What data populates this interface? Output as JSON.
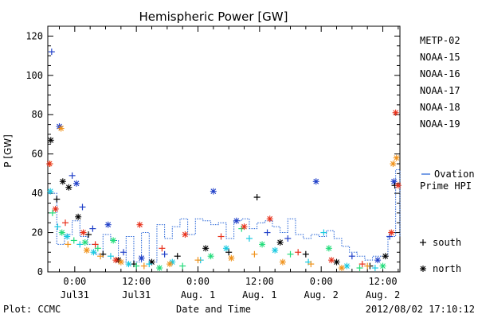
{
  "chart_data": {
    "type": "scatter",
    "title": "Hemispheric Power [GW]",
    "ylabel": "P [GW]",
    "xlabel": "Date and Time",
    "ylim": [
      0,
      125
    ],
    "yticks": [
      0,
      20,
      40,
      60,
      80,
      100,
      120
    ],
    "xlim": [
      "2012-07-30T18:45",
      "2012-08-02T15:20"
    ],
    "xticks": [
      {
        "t": "2012-07-31T00:00",
        "line1": "0:00",
        "line2": "Jul31"
      },
      {
        "t": "2012-07-31T12:00",
        "line1": "12:00",
        "line2": "Jul31"
      },
      {
        "t": "2012-08-01T00:00",
        "line1": "0:00",
        "line2": "Aug. 1"
      },
      {
        "t": "2012-08-01T12:00",
        "line1": "12:00",
        "line2": "Aug. 1"
      },
      {
        "t": "2012-08-02T00:00",
        "line1": "0:00",
        "line2": "Aug. 2"
      },
      {
        "t": "2012-08-02T12:00",
        "line1": "12:00",
        "line2": "Aug. 2"
      }
    ],
    "marker_legend": {
      "south": "south",
      "north": "north",
      "south_symbol": "+",
      "north_symbol": "*"
    },
    "ovation": {
      "name": "Ovation Prime HPI",
      "color": "#1f5fd6",
      "x": [
        "2012-07-30T19:00",
        "2012-07-30T20:30",
        "2012-07-30T22:00",
        "2012-07-30T23:30",
        "2012-07-31T01:00",
        "2012-07-31T02:30",
        "2012-07-31T04:00",
        "2012-07-31T05:30",
        "2012-07-31T07:00",
        "2012-07-31T08:30",
        "2012-07-31T10:00",
        "2012-07-31T11:30",
        "2012-07-31T13:00",
        "2012-07-31T14:30",
        "2012-07-31T16:00",
        "2012-07-31T17:30",
        "2012-07-31T19:00",
        "2012-07-31T20:30",
        "2012-07-31T22:00",
        "2012-07-31T23:30",
        "2012-08-01T01:00",
        "2012-08-01T02:30",
        "2012-08-01T04:00",
        "2012-08-01T05:30",
        "2012-08-01T07:00",
        "2012-08-01T08:30",
        "2012-08-01T10:00",
        "2012-08-01T11:30",
        "2012-08-01T13:00",
        "2012-08-01T14:30",
        "2012-08-01T16:00",
        "2012-08-01T17:30",
        "2012-08-01T19:00",
        "2012-08-01T20:30",
        "2012-08-01T22:00",
        "2012-08-01T23:30",
        "2012-08-02T01:00",
        "2012-08-02T02:30",
        "2012-08-02T04:00",
        "2012-08-02T05:30",
        "2012-08-02T07:00",
        "2012-08-02T08:30",
        "2012-08-02T10:00",
        "2012-08-02T11:30",
        "2012-08-02T13:00",
        "2012-08-02T14:30",
        "2012-08-02T15:20"
      ],
      "y": [
        40,
        14,
        19,
        26,
        18,
        14,
        9,
        19,
        16,
        5,
        18,
        5,
        20,
        5,
        24,
        17,
        23,
        27,
        19,
        27,
        26,
        24,
        25,
        17,
        26,
        27,
        22,
        25,
        26,
        23,
        20,
        27,
        19,
        17,
        19,
        18,
        21,
        17,
        13,
        10,
        8,
        6,
        8,
        8,
        18,
        52,
        18
      ]
    },
    "series": [
      {
        "name": "METP-02",
        "color": "#000000",
        "points": [
          {
            "x": "2012-07-30T19:20",
            "y": 67,
            "m": "*"
          },
          {
            "x": "2012-07-30T20:30",
            "y": 37,
            "m": "+"
          },
          {
            "x": "2012-07-30T21:40",
            "y": 46,
            "m": "*"
          },
          {
            "x": "2012-07-30T22:50",
            "y": 43,
            "m": "*"
          },
          {
            "x": "2012-07-31T00:40",
            "y": 28,
            "m": "*"
          },
          {
            "x": "2012-07-31T02:40",
            "y": 19,
            "m": "+"
          },
          {
            "x": "2012-07-31T05:30",
            "y": 9,
            "m": "+"
          },
          {
            "x": "2012-07-31T08:30",
            "y": 6,
            "m": "*"
          },
          {
            "x": "2012-07-31T11:30",
            "y": 4,
            "m": "+"
          },
          {
            "x": "2012-07-31T15:00",
            "y": 5,
            "m": "*"
          },
          {
            "x": "2012-07-31T20:00",
            "y": 8,
            "m": "+"
          },
          {
            "x": "2012-08-01T01:30",
            "y": 12,
            "m": "*"
          },
          {
            "x": "2012-08-01T06:00",
            "y": 10,
            "m": "+"
          },
          {
            "x": "2012-08-01T11:30",
            "y": 38,
            "m": "+"
          },
          {
            "x": "2012-08-01T16:00",
            "y": 15,
            "m": "*"
          },
          {
            "x": "2012-08-01T21:00",
            "y": 9,
            "m": "+"
          },
          {
            "x": "2012-08-02T03:00",
            "y": 5,
            "m": "*"
          },
          {
            "x": "2012-08-02T09:30",
            "y": 3,
            "m": "+"
          },
          {
            "x": "2012-08-02T12:30",
            "y": 8,
            "m": "*"
          },
          {
            "x": "2012-08-02T14:20",
            "y": 44,
            "m": "+"
          }
        ]
      },
      {
        "name": "NOAA-15",
        "color": "#1f3fc8",
        "points": [
          {
            "x": "2012-07-30T19:30",
            "y": 112,
            "m": "+"
          },
          {
            "x": "2012-07-30T21:00",
            "y": 74,
            "m": "*"
          },
          {
            "x": "2012-07-30T23:30",
            "y": 49,
            "m": "+"
          },
          {
            "x": "2012-07-31T00:20",
            "y": 45,
            "m": "*"
          },
          {
            "x": "2012-07-31T01:30",
            "y": 33,
            "m": "+"
          },
          {
            "x": "2012-07-31T03:30",
            "y": 22,
            "m": "+"
          },
          {
            "x": "2012-07-31T06:30",
            "y": 24,
            "m": "*"
          },
          {
            "x": "2012-07-31T09:30",
            "y": 10,
            "m": "+"
          },
          {
            "x": "2012-07-31T13:00",
            "y": 7,
            "m": "*"
          },
          {
            "x": "2012-07-31T17:30",
            "y": 9,
            "m": "+"
          },
          {
            "x": "2012-08-01T03:00",
            "y": 41,
            "m": "*"
          },
          {
            "x": "2012-08-01T07:30",
            "y": 26,
            "m": "*"
          },
          {
            "x": "2012-08-01T13:30",
            "y": 20,
            "m": "+"
          },
          {
            "x": "2012-08-01T17:30",
            "y": 17,
            "m": "+"
          },
          {
            "x": "2012-08-01T23:00",
            "y": 46,
            "m": "*"
          },
          {
            "x": "2012-08-02T06:00",
            "y": 8,
            "m": "+"
          },
          {
            "x": "2012-08-02T11:00",
            "y": 6,
            "m": "*"
          },
          {
            "x": "2012-08-02T13:20",
            "y": 18,
            "m": "+"
          },
          {
            "x": "2012-08-02T14:10",
            "y": 46,
            "m": "*"
          }
        ]
      },
      {
        "name": "NOAA-16",
        "color": "#18c8e0",
        "points": [
          {
            "x": "2012-07-30T19:15",
            "y": 41,
            "m": "*"
          },
          {
            "x": "2012-07-30T20:40",
            "y": 23,
            "m": "+"
          },
          {
            "x": "2012-07-30T22:30",
            "y": 18,
            "m": "*"
          },
          {
            "x": "2012-07-31T01:00",
            "y": 14,
            "m": "+"
          },
          {
            "x": "2012-07-31T03:40",
            "y": 10,
            "m": "*"
          },
          {
            "x": "2012-07-31T07:00",
            "y": 8,
            "m": "+"
          },
          {
            "x": "2012-07-31T10:30",
            "y": 4,
            "m": "*"
          },
          {
            "x": "2012-07-31T14:30",
            "y": 4,
            "m": "+"
          },
          {
            "x": "2012-07-31T19:00",
            "y": 5,
            "m": "*"
          },
          {
            "x": "2012-08-01T00:30",
            "y": 6,
            "m": "+"
          },
          {
            "x": "2012-08-01T05:30",
            "y": 12,
            "m": "*"
          },
          {
            "x": "2012-08-01T10:00",
            "y": 17,
            "m": "+"
          },
          {
            "x": "2012-08-01T15:00",
            "y": 11,
            "m": "*"
          },
          {
            "x": "2012-08-01T21:30",
            "y": 5,
            "m": "+"
          },
          {
            "x": "2012-08-02T00:30",
            "y": 20,
            "m": "+"
          },
          {
            "x": "2012-08-02T05:00",
            "y": 3,
            "m": "*"
          },
          {
            "x": "2012-08-02T10:30",
            "y": 2,
            "m": "+"
          }
        ]
      },
      {
        "name": "NOAA-17",
        "color": "#22dc7a",
        "points": [
          {
            "x": "2012-07-30T19:40",
            "y": 30,
            "m": "+"
          },
          {
            "x": "2012-07-30T21:30",
            "y": 20,
            "m": "*"
          },
          {
            "x": "2012-07-30T23:50",
            "y": 16,
            "m": "+"
          },
          {
            "x": "2012-07-31T02:00",
            "y": 15,
            "m": "*"
          },
          {
            "x": "2012-07-31T04:30",
            "y": 12,
            "m": "+"
          },
          {
            "x": "2012-07-31T07:30",
            "y": 16,
            "m": "*"
          },
          {
            "x": "2012-07-31T12:00",
            "y": 3,
            "m": "+"
          },
          {
            "x": "2012-07-31T16:30",
            "y": 2,
            "m": "*"
          },
          {
            "x": "2012-07-31T21:00",
            "y": 3,
            "m": "+"
          },
          {
            "x": "2012-08-01T02:30",
            "y": 8,
            "m": "*"
          },
          {
            "x": "2012-08-01T08:30",
            "y": 22,
            "m": "+"
          },
          {
            "x": "2012-08-01T12:30",
            "y": 14,
            "m": "*"
          },
          {
            "x": "2012-08-01T18:00",
            "y": 9,
            "m": "+"
          },
          {
            "x": "2012-08-02T01:30",
            "y": 12,
            "m": "*"
          },
          {
            "x": "2012-08-02T07:30",
            "y": 2,
            "m": "+"
          },
          {
            "x": "2012-08-02T12:00",
            "y": 3,
            "m": "*"
          }
        ]
      },
      {
        "name": "NOAA-18",
        "color": "#f0921a",
        "points": [
          {
            "x": "2012-07-30T19:10",
            "y": 55,
            "m": "+"
          },
          {
            "x": "2012-07-30T21:20",
            "y": 73,
            "m": "*"
          },
          {
            "x": "2012-07-30T22:40",
            "y": 14,
            "m": "+"
          },
          {
            "x": "2012-07-31T02:20",
            "y": 11,
            "m": "*"
          },
          {
            "x": "2012-07-31T05:00",
            "y": 8,
            "m": "+"
          },
          {
            "x": "2012-07-31T09:00",
            "y": 5,
            "m": "*"
          },
          {
            "x": "2012-07-31T13:30",
            "y": 3,
            "m": "+"
          },
          {
            "x": "2012-07-31T18:30",
            "y": 4,
            "m": "*"
          },
          {
            "x": "2012-08-01T00:00",
            "y": 6,
            "m": "+"
          },
          {
            "x": "2012-08-01T06:30",
            "y": 7,
            "m": "*"
          },
          {
            "x": "2012-08-01T11:00",
            "y": 9,
            "m": "+"
          },
          {
            "x": "2012-08-01T16:30",
            "y": 5,
            "m": "*"
          },
          {
            "x": "2012-08-01T22:00",
            "y": 4,
            "m": "+"
          },
          {
            "x": "2012-08-02T04:00",
            "y": 2,
            "m": "*"
          },
          {
            "x": "2012-08-02T09:00",
            "y": 3,
            "m": "+"
          },
          {
            "x": "2012-08-02T14:00",
            "y": 55,
            "m": "*"
          },
          {
            "x": "2012-08-02T14:40",
            "y": 58,
            "m": "*"
          }
        ]
      },
      {
        "name": "NOAA-19",
        "color": "#e8301a",
        "points": [
          {
            "x": "2012-07-30T19:05",
            "y": 55,
            "m": "*"
          },
          {
            "x": "2012-07-30T20:15",
            "y": 32,
            "m": "*"
          },
          {
            "x": "2012-07-30T22:10",
            "y": 25,
            "m": "+"
          },
          {
            "x": "2012-07-31T01:40",
            "y": 20,
            "m": "*"
          },
          {
            "x": "2012-07-31T04:00",
            "y": 14,
            "m": "+"
          },
          {
            "x": "2012-07-31T08:00",
            "y": 6,
            "m": "*"
          },
          {
            "x": "2012-07-31T12:40",
            "y": 24,
            "m": "*"
          },
          {
            "x": "2012-07-31T17:00",
            "y": 12,
            "m": "+"
          },
          {
            "x": "2012-07-31T21:30",
            "y": 19,
            "m": "*"
          },
          {
            "x": "2012-08-01T04:30",
            "y": 18,
            "m": "+"
          },
          {
            "x": "2012-08-01T09:00",
            "y": 23,
            "m": "*"
          },
          {
            "x": "2012-08-01T14:00",
            "y": 27,
            "m": "*"
          },
          {
            "x": "2012-08-01T19:30",
            "y": 10,
            "m": "+"
          },
          {
            "x": "2012-08-02T02:00",
            "y": 6,
            "m": "*"
          },
          {
            "x": "2012-08-02T08:00",
            "y": 4,
            "m": "+"
          },
          {
            "x": "2012-08-02T13:40",
            "y": 20,
            "m": "*"
          },
          {
            "x": "2012-08-02T14:30",
            "y": 81,
            "m": "*"
          },
          {
            "x": "2012-08-02T15:00",
            "y": 44,
            "m": "*"
          }
        ]
      }
    ]
  },
  "footer": {
    "left": "Plot: CCMC",
    "right": "2012/08/02 17:10:12"
  }
}
